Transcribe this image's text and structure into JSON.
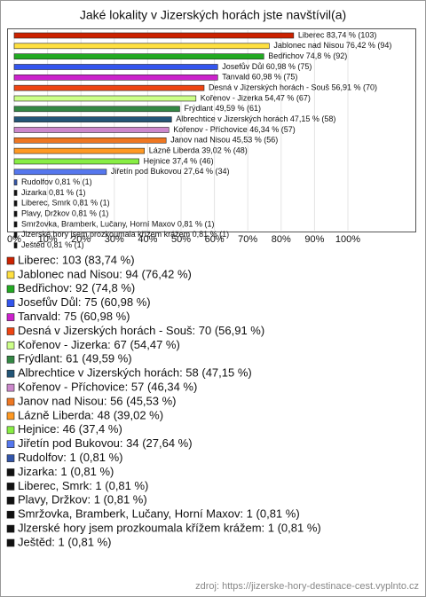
{
  "chart_data": {
    "type": "bar",
    "orientation": "horizontal",
    "title": "Jaké lokality v Jizerských horách jste navštívil(a)",
    "values": [
      83.74,
      76.42,
      74.8,
      60.98,
      60.98,
      56.91,
      54.47,
      49.59,
      47.15,
      46.34,
      45.53,
      39.02,
      37.4,
      27.64,
      0.81,
      0.81,
      0.81,
      0.81,
      0.81,
      0.81,
      0.81
    ],
    "value_labels": [
      "Liberec 83,74 % (103)",
      "Jablonec nad Nisou 76,42 % (94)",
      "Bedřichov 74,8 % (92)",
      "Josefův Důl 60,98 % (75)",
      "Tanvald 60,98 % (75)",
      "Desná v Jizerských horách - Souš 56,91 % (70)",
      "Kořenov - Jizerka 54,47 % (67)",
      "Frýdlant 49,59 % (61)",
      "Albrechtice v Jizerských horách 47,15 % (58)",
      "Kořenov - Příchovice 46,34 % (57)",
      "Janov nad Nisou 45,53 % (56)",
      "Lázně Liberda 39,02 % (48)",
      "Hejnice 37,4 % (46)",
      "Jiřetín pod Bukovou 27,64 % (34)",
      "Rudolfov 0,81 % (1)",
      "Jizarka 0,81 % (1)",
      "Liberec, Smrk 0,81 % (1)",
      "Plavy, Držkov 0,81 % (1)",
      "Smržovka, Bramberk, Lučany, Horní Maxov 0,81 % (1)",
      "Jlzerské hory jsem prozkoumala křížem krážem 0,81 % (1)",
      "Ještěd 0,81 % (1)"
    ],
    "legend_labels": [
      "Liberec: 103 (83,74 %)",
      "Jablonec nad Nisou: 94 (76,42 %)",
      "Bedřichov: 92 (74,8 %)",
      "Josefův Důl: 75 (60,98 %)",
      "Tanvald: 75 (60,98 %)",
      "Desná v Jizerských horách - Souš: 70 (56,91 %)",
      "Kořenov - Jizerka: 67 (54,47 %)",
      "Frýdlant: 61 (49,59 %)",
      "Albrechtice v Jizerských horách: 58 (47,15 %)",
      "Kořenov - Příchovice: 57 (46,34 %)",
      "Janov nad Nisou: 56 (45,53 %)",
      "Lázně Liberda: 48 (39,02 %)",
      "Hejnice: 46 (37,4 %)",
      "Jiřetín pod Bukovou: 34 (27,64 %)",
      "Rudolfov: 1 (0,81 %)",
      "Jizarka: 1 (0,81 %)",
      "Liberec, Smrk: 1 (0,81 %)",
      "Plavy, Držkov: 1 (0,81 %)",
      "Smržovka, Bramberk, Lučany, Horní Maxov: 1 (0,81 %)",
      "Jlzerské hory jsem prozkoumala křížem krážem: 1 (0,81 %)",
      "Ještěd: 1 (0,81 %)"
    ],
    "colors": [
      "#cc2200",
      "#ffe040",
      "#22aa22",
      "#3355ee",
      "#cc22cc",
      "#ee4411",
      "#ccff88",
      "#338844",
      "#225577",
      "#cc88cc",
      "#ee7722",
      "#ff9922",
      "#88ee44",
      "#5577ee",
      "#3355aa",
      "#111111",
      "#111111",
      "#111111",
      "#111111",
      "#111111",
      "#111111"
    ],
    "xlim": [
      0,
      112
    ],
    "xticks": [
      {
        "value": 0,
        "label": "0%"
      },
      {
        "value": 10,
        "label": "10%"
      },
      {
        "value": 20,
        "label": "20%"
      },
      {
        "value": 30,
        "label": "30%"
      },
      {
        "value": 40,
        "label": "40%"
      },
      {
        "value": 50,
        "label": "50%"
      },
      {
        "value": 60,
        "label": "60%"
      },
      {
        "value": 70,
        "label": "70%"
      },
      {
        "value": 80,
        "label": "80%"
      },
      {
        "value": 90,
        "label": "90%"
      },
      {
        "value": 100,
        "label": "100%"
      }
    ],
    "grid": true
  },
  "source": "zdroj: https://jizerske-hory-destinace-cest.vyplnto.cz"
}
